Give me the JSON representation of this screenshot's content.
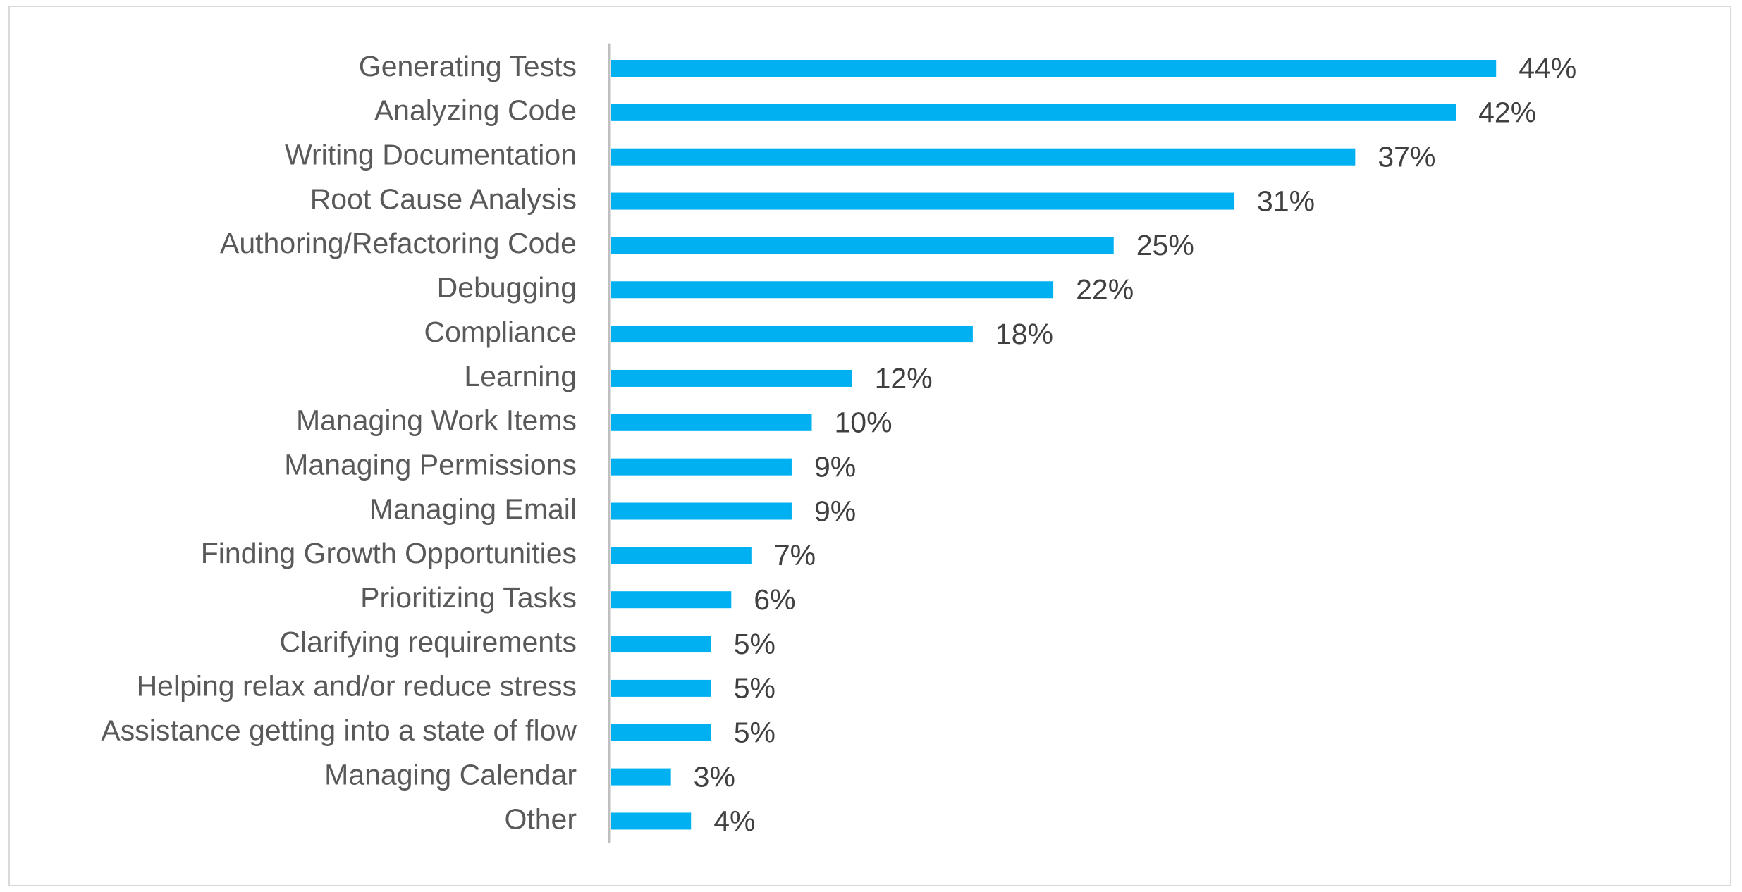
{
  "chart_data": {
    "type": "bar",
    "orientation": "horizontal",
    "title": "",
    "xlabel": "",
    "ylabel": "",
    "categories": [
      "Generating Tests",
      "Analyzing Code",
      "Writing Documentation",
      "Root Cause Analysis",
      "Authoring/Refactoring Code",
      "Debugging",
      "Compliance",
      "Learning",
      "Managing Work Items",
      "Managing Permissions",
      "Managing Email",
      "Finding Growth Opportunities",
      "Prioritizing Tasks",
      "Clarifying requirements",
      "Helping relax and/or reduce stress",
      "Assistance getting into a state of flow",
      "Managing Calendar",
      "Other"
    ],
    "values": [
      44,
      42,
      37,
      31,
      25,
      22,
      18,
      12,
      10,
      9,
      9,
      7,
      6,
      5,
      5,
      5,
      3,
      4
    ],
    "value_labels": [
      "44%",
      "42%",
      "37%",
      "31%",
      "25%",
      "22%",
      "18%",
      "12%",
      "10%",
      "9%",
      "9%",
      "7%",
      "6%",
      "5%",
      "5%",
      "5%",
      "3%",
      "4%"
    ],
    "unit": "%",
    "xlim": [
      0,
      47
    ],
    "grid": false,
    "legend": "none",
    "bar_color": "#00b0f0"
  }
}
